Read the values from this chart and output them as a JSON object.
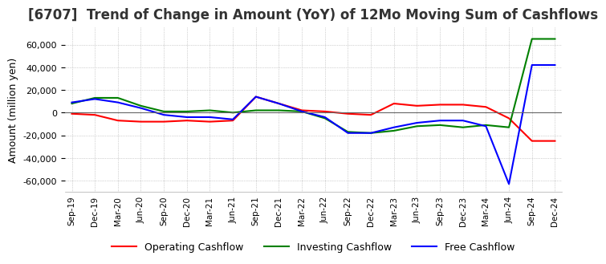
{
  "title": "[6707]  Trend of Change in Amount (YoY) of 12Mo Moving Sum of Cashflows",
  "ylabel": "Amount (million yen)",
  "ylim": [
    -70000,
    75000
  ],
  "yticks": [
    -60000,
    -40000,
    -20000,
    0,
    20000,
    40000,
    60000
  ],
  "x_labels": [
    "Sep-19",
    "Dec-19",
    "Mar-20",
    "Jun-20",
    "Sep-20",
    "Dec-20",
    "Mar-21",
    "Jun-21",
    "Sep-21",
    "Dec-21",
    "Mar-22",
    "Jun-22",
    "Sep-22",
    "Dec-22",
    "Mar-23",
    "Jun-23",
    "Sep-23",
    "Dec-23",
    "Mar-24",
    "Jun-24",
    "Sep-24",
    "Dec-24"
  ],
  "operating": [
    -1000,
    -2000,
    -7000,
    -8000,
    -8000,
    -7000,
    -8000,
    -7000,
    14000,
    8000,
    2000,
    1000,
    -1000,
    -2000,
    8000,
    6000,
    7000,
    7000,
    5000,
    -5000,
    -25000,
    -25000
  ],
  "investing": [
    8000,
    13000,
    13000,
    6000,
    1000,
    1000,
    2000,
    0,
    2000,
    2000,
    1000,
    -5000,
    -17000,
    -18000,
    -16000,
    -12000,
    -11000,
    -13000,
    -11000,
    -13000,
    65000,
    65000
  ],
  "free": [
    9000,
    12000,
    9000,
    4000,
    -2000,
    -4000,
    -4000,
    -6000,
    14000,
    8000,
    1000,
    -4000,
    -18000,
    -18000,
    -13000,
    -9000,
    -7000,
    -7000,
    -12000,
    -63000,
    42000,
    42000
  ],
  "operating_color": "#ff0000",
  "investing_color": "#008000",
  "free_color": "#0000ff",
  "background_color": "#ffffff",
  "grid_color": "#aaaaaa",
  "title_fontsize": 12,
  "legend_labels": [
    "Operating Cashflow",
    "Investing Cashflow",
    "Free Cashflow"
  ]
}
